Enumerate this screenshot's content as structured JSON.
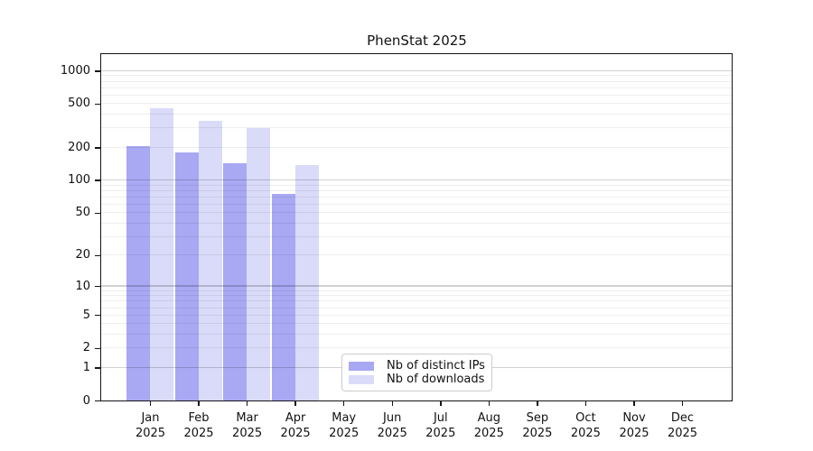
{
  "title": "PhenStat 2025",
  "chart_data": {
    "type": "bar",
    "title": "PhenStat 2025",
    "scale": "log10(value+1)",
    "grid": "on",
    "categories": [
      "Jan",
      "Feb",
      "Mar",
      "Apr",
      "May",
      "Jun",
      "Jul",
      "Aug",
      "Sep",
      "Oct",
      "Nov",
      "Dec"
    ],
    "year": "2025",
    "series": [
      {
        "name": "Nb of distinct IPs",
        "color": "#a8a8f3",
        "values": [
          205,
          180,
          142,
          74,
          0,
          0,
          0,
          0,
          0,
          0,
          0,
          0
        ]
      },
      {
        "name": "Nb of downloads",
        "color": "#dadaf9",
        "values": [
          455,
          350,
          302,
          137,
          0,
          0,
          0,
          0,
          0,
          0,
          0,
          0
        ]
      }
    ],
    "y_axis": {
      "ticks": [
        0,
        1,
        2,
        5,
        10,
        20,
        50,
        100,
        200,
        500,
        1000
      ],
      "major_gridlines": [
        1,
        10,
        100,
        1000
      ],
      "max_log_units": 3.15,
      "ylim": [
        0,
        1380
      ]
    },
    "x_axis": {
      "tick_label_format": "month over year"
    },
    "legend": {
      "position": "lower-center-left",
      "items": [
        "Nb of distinct IPs",
        "Nb of downloads"
      ]
    }
  },
  "colors": {
    "background": "#ffffff",
    "spine": "#15151a",
    "major_grid": "rgba(0,0,0,0.18)",
    "minor_grid": "rgba(0,0,0,0.065)",
    "text": "#111111",
    "legend_border": "#cccccc"
  }
}
